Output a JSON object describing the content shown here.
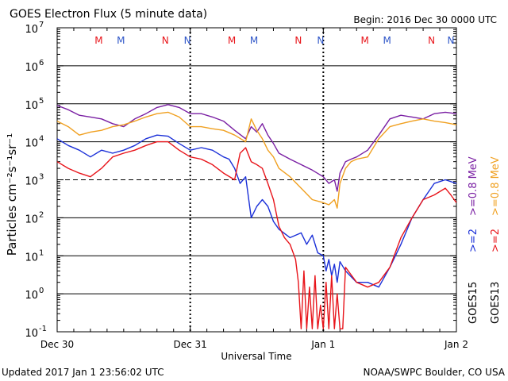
{
  "chart_data": {
    "type": "line",
    "title": "GOES Electron Flux (5 minute data)",
    "begin_label": "Begin: 2016 Dec 30 0000 UTC",
    "xlabel": "Universal Time",
    "ylabel": "Particles cm⁻²s⁻¹sr⁻¹",
    "yscale": "log",
    "ylim": [
      0.1,
      10000000
    ],
    "y_tick_labels": [
      {
        "base": "10",
        "exp": "7"
      },
      {
        "base": "10",
        "exp": "6"
      },
      {
        "base": "10",
        "exp": "5"
      },
      {
        "base": "10",
        "exp": "4"
      },
      {
        "base": "10",
        "exp": "3"
      },
      {
        "base": "10",
        "exp": "2"
      },
      {
        "base": "10",
        "exp": "1"
      },
      {
        "base": "10",
        "exp": "0"
      },
      {
        "base": "10",
        "exp": "-1"
      }
    ],
    "xlim": [
      0,
      72
    ],
    "x_tick_labels": [
      "Dec 30",
      "Dec 31",
      "Jan 1",
      "Jan 2"
    ],
    "x_tick_hours": [
      0,
      24,
      48,
      72
    ],
    "grid": {
      "horizontal": true
    },
    "threshold_line": 1000,
    "markers": [
      {
        "label": "M",
        "hour": 7.5,
        "color": "#e8141a"
      },
      {
        "label": "M",
        "hour": 11.5,
        "color": "#2f56c8"
      },
      {
        "label": "N",
        "hour": 19.5,
        "color": "#e8141a"
      },
      {
        "label": "N",
        "hour": 23.5,
        "color": "#2f56c8"
      },
      {
        "label": "M",
        "hour": 31.5,
        "color": "#e8141a"
      },
      {
        "label": "M",
        "hour": 35.5,
        "color": "#2f56c8"
      },
      {
        "label": "N",
        "hour": 43.5,
        "color": "#e8141a"
      },
      {
        "label": "N",
        "hour": 47.5,
        "color": "#2f56c8"
      },
      {
        "label": "M",
        "hour": 55.5,
        "color": "#e8141a"
      },
      {
        "label": "M",
        "hour": 59.5,
        "color": "#2f56c8"
      },
      {
        "label": "N",
        "hour": 67.5,
        "color": "#e8141a"
      },
      {
        "label": "N",
        "hour": 71.0,
        "color": "#2f56c8"
      }
    ],
    "legend": [
      {
        "satellite": "GOES15",
        "items": [
          {
            "label": ">=2",
            "color": "#1a2fd8"
          },
          {
            "label": ">=0.8 MeV",
            "color": "#7a1fa3"
          }
        ]
      },
      {
        "satellite": "GOES13",
        "items": [
          {
            "label": ">=2",
            "color": "#e8141a"
          },
          {
            "label": ">=0.8 MeV",
            "color": "#f0a020"
          }
        ]
      }
    ],
    "series": [
      {
        "name": "GOES15 >=0.8 MeV",
        "color": "#7a1fa3",
        "x": [
          0,
          2,
          4,
          6,
          8,
          10,
          12,
          14,
          16,
          18,
          20,
          22,
          24,
          26,
          28,
          30,
          32,
          34,
          35,
          36,
          37,
          38,
          39,
          40,
          42,
          44,
          46,
          48,
          49,
          50,
          50.5,
          51,
          52,
          53,
          54,
          56,
          58,
          60,
          62,
          64,
          66,
          68,
          70,
          72
        ],
        "y": [
          90000,
          70000,
          50000,
          45000,
          40000,
          30000,
          25000,
          40000,
          55000,
          80000,
          95000,
          80000,
          55000,
          55000,
          45000,
          35000,
          20000,
          12000,
          25000,
          18000,
          30000,
          15000,
          9000,
          5000,
          3500,
          2500,
          1800,
          1200,
          800,
          1000,
          500,
          1500,
          3000,
          3500,
          4000,
          6000,
          15000,
          40000,
          50000,
          45000,
          40000,
          55000,
          60000,
          55000
        ]
      },
      {
        "name": "GOES13 >=0.8 MeV",
        "color": "#f0a020",
        "x": [
          0,
          2,
          4,
          6,
          8,
          10,
          12,
          14,
          16,
          18,
          20,
          22,
          24,
          26,
          28,
          30,
          32,
          34,
          35,
          36,
          37,
          38,
          39,
          40,
          42,
          44,
          46,
          48,
          49,
          50,
          50.5,
          51,
          52,
          53,
          54,
          56,
          58,
          60,
          62,
          64,
          66,
          68,
          70,
          72
        ],
        "y": [
          35000,
          25000,
          15000,
          18000,
          20000,
          25000,
          28000,
          35000,
          45000,
          55000,
          60000,
          45000,
          25000,
          25000,
          22000,
          20000,
          15000,
          10000,
          40000,
          20000,
          12000,
          6000,
          4000,
          2000,
          1200,
          600,
          300,
          250,
          220,
          300,
          180,
          800,
          2000,
          3000,
          3500,
          4000,
          12000,
          25000,
          30000,
          35000,
          40000,
          35000,
          32000,
          28000
        ]
      },
      {
        "name": "GOES15 >=2",
        "color": "#1a2fd8",
        "x": [
          0,
          2,
          4,
          6,
          8,
          10,
          12,
          14,
          16,
          18,
          20,
          22,
          24,
          26,
          28,
          30,
          31,
          32,
          33,
          34,
          35,
          36,
          37,
          38,
          39,
          40,
          42,
          44,
          45,
          46,
          47,
          48,
          48.5,
          49,
          49.5,
          50,
          50.5,
          51,
          52,
          54,
          56,
          58,
          60,
          62,
          64,
          66,
          68,
          70,
          72
        ],
        "y": [
          12000,
          8000,
          6000,
          4000,
          6000,
          5000,
          6000,
          8000,
          12000,
          15000,
          14000,
          9000,
          6000,
          7000,
          6000,
          4000,
          3500,
          2000,
          800,
          1200,
          100,
          200,
          300,
          200,
          80,
          50,
          30,
          40,
          20,
          35,
          12,
          10,
          4,
          8,
          3,
          6,
          2,
          7,
          4,
          2,
          2,
          1.5,
          5,
          20,
          100,
          300,
          800,
          1000,
          800
        ]
      },
      {
        "name": "GOES13 >=2",
        "color": "#e8141a",
        "x": [
          0,
          2,
          4,
          6,
          8,
          10,
          12,
          14,
          16,
          18,
          20,
          22,
          24,
          26,
          28,
          30,
          32,
          33,
          34,
          35,
          36,
          37,
          38,
          39,
          40,
          41,
          42,
          43,
          43.5,
          44,
          44.5,
          45,
          45.5,
          46,
          46.5,
          47,
          47.5,
          48,
          48.5,
          49,
          49.5,
          50,
          50.5,
          51,
          51.5,
          52,
          54,
          56,
          58,
          60,
          62,
          64,
          66,
          68,
          70,
          71,
          72
        ],
        "y": [
          3000,
          2000,
          1500,
          1200,
          2000,
          4000,
          5000,
          6000,
          8000,
          10000,
          10000,
          6000,
          4000,
          3500,
          2500,
          1500,
          1000,
          5000,
          7000,
          3000,
          2500,
          2000,
          800,
          300,
          60,
          30,
          20,
          8,
          2,
          0.12,
          4,
          0.12,
          1.5,
          0.12,
          3,
          0.12,
          0.5,
          0.12,
          2,
          0.12,
          3,
          0.12,
          1,
          0.12,
          0.12,
          5,
          2,
          1.5,
          2,
          5,
          30,
          100,
          300,
          400,
          600,
          400,
          250
        ]
      }
    ]
  },
  "footer": {
    "updated": "Updated 2017 Jan  1 23:56:02 UTC",
    "credit": "NOAA/SWPC Boulder, CO USA"
  }
}
